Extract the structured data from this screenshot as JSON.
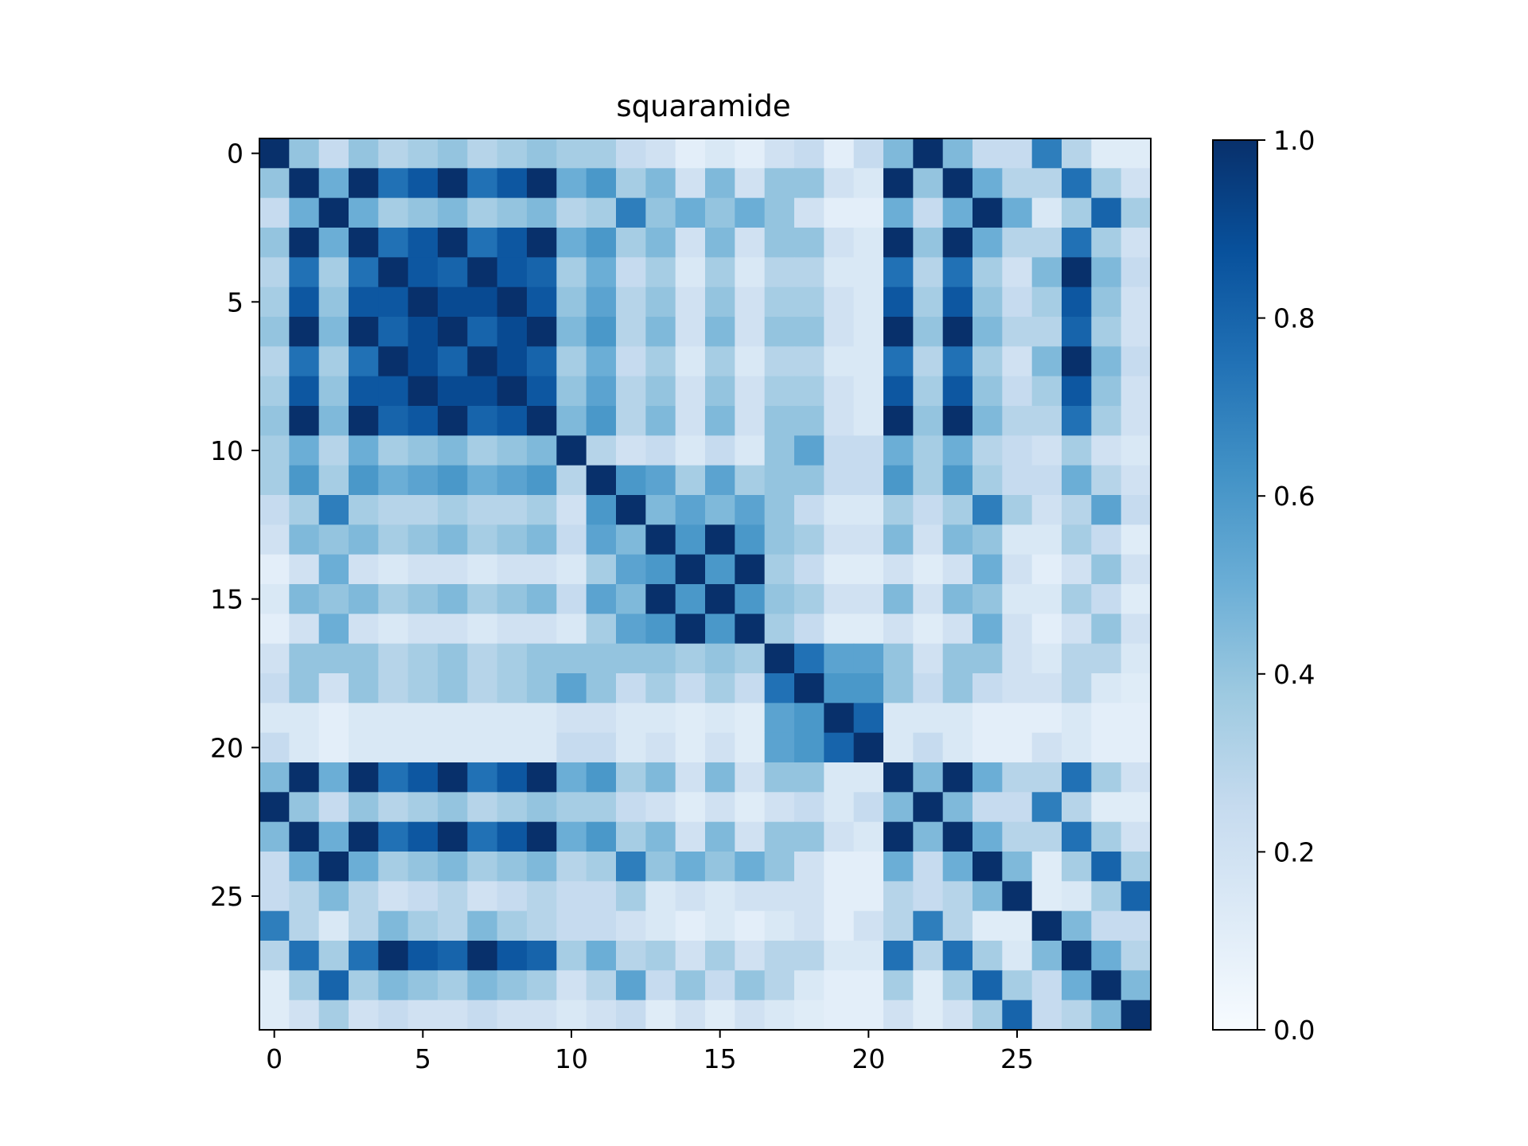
{
  "chart_data": {
    "type": "heatmap",
    "title": "squaramide",
    "xlabel": "",
    "ylabel": "",
    "x_ticks": [
      "0",
      "5",
      "10",
      "15",
      "20",
      "25"
    ],
    "y_ticks": [
      "0",
      "5",
      "10",
      "15",
      "20",
      "25"
    ],
    "colorbar": {
      "ticks": [
        "0.0",
        "0.2",
        "0.4",
        "0.6",
        "0.8",
        "1.0"
      ],
      "range": [
        0,
        1
      ],
      "colormap": "Blues"
    },
    "colormap_stops": [
      "#f7fbff",
      "#deebf7",
      "#c6dbef",
      "#9ecae1",
      "#6baed6",
      "#4292c6",
      "#2171b5",
      "#08519c",
      "#08306b"
    ],
    "values": [
      [
        1.0,
        0.4,
        0.25,
        0.4,
        0.3,
        0.35,
        0.4,
        0.3,
        0.35,
        0.4,
        0.35,
        0.35,
        0.25,
        0.2,
        0.1,
        0.15,
        0.1,
        0.2,
        0.25,
        0.1,
        0.25,
        0.45,
        1.0,
        0.45,
        0.25,
        0.25,
        0.7,
        0.3,
        0.12,
        0.12
      ],
      [
        0.4,
        1.0,
        0.5,
        1.0,
        0.75,
        0.85,
        1.0,
        0.75,
        0.85,
        1.0,
        0.5,
        0.6,
        0.35,
        0.45,
        0.2,
        0.45,
        0.2,
        0.4,
        0.4,
        0.2,
        0.15,
        1.0,
        0.4,
        1.0,
        0.5,
        0.3,
        0.3,
        0.75,
        0.35,
        0.2
      ],
      [
        0.25,
        0.5,
        1.0,
        0.5,
        0.35,
        0.4,
        0.45,
        0.35,
        0.4,
        0.45,
        0.3,
        0.35,
        0.7,
        0.4,
        0.5,
        0.4,
        0.5,
        0.4,
        0.2,
        0.1,
        0.1,
        0.5,
        0.25,
        0.5,
        1.0,
        0.5,
        0.15,
        0.35,
        0.8,
        0.35
      ],
      [
        0.4,
        1.0,
        0.5,
        1.0,
        0.75,
        0.85,
        1.0,
        0.75,
        0.85,
        1.0,
        0.5,
        0.6,
        0.35,
        0.45,
        0.2,
        0.45,
        0.2,
        0.4,
        0.4,
        0.2,
        0.15,
        1.0,
        0.4,
        1.0,
        0.5,
        0.3,
        0.3,
        0.75,
        0.35,
        0.2
      ],
      [
        0.3,
        0.75,
        0.35,
        0.75,
        1.0,
        0.85,
        0.8,
        1.0,
        0.85,
        0.8,
        0.35,
        0.5,
        0.25,
        0.35,
        0.15,
        0.35,
        0.15,
        0.3,
        0.3,
        0.15,
        0.15,
        0.75,
        0.3,
        0.75,
        0.35,
        0.2,
        0.45,
        1.0,
        0.45,
        0.25
      ],
      [
        0.35,
        0.85,
        0.4,
        0.85,
        0.85,
        1.0,
        0.9,
        0.9,
        1.0,
        0.85,
        0.4,
        0.55,
        0.3,
        0.4,
        0.2,
        0.4,
        0.2,
        0.35,
        0.35,
        0.2,
        0.15,
        0.85,
        0.35,
        0.85,
        0.4,
        0.25,
        0.35,
        0.85,
        0.4,
        0.2
      ],
      [
        0.4,
        1.0,
        0.45,
        1.0,
        0.8,
        0.9,
        1.0,
        0.8,
        0.9,
        1.0,
        0.45,
        0.6,
        0.3,
        0.45,
        0.2,
        0.45,
        0.2,
        0.4,
        0.4,
        0.2,
        0.15,
        1.0,
        0.4,
        1.0,
        0.45,
        0.3,
        0.3,
        0.8,
        0.35,
        0.2
      ],
      [
        0.3,
        0.75,
        0.35,
        0.75,
        1.0,
        0.9,
        0.8,
        1.0,
        0.9,
        0.8,
        0.35,
        0.5,
        0.25,
        0.35,
        0.15,
        0.35,
        0.15,
        0.3,
        0.3,
        0.15,
        0.15,
        0.75,
        0.3,
        0.75,
        0.35,
        0.2,
        0.45,
        1.0,
        0.45,
        0.25
      ],
      [
        0.35,
        0.85,
        0.4,
        0.85,
        0.85,
        1.0,
        0.9,
        0.9,
        1.0,
        0.85,
        0.4,
        0.55,
        0.3,
        0.4,
        0.2,
        0.4,
        0.2,
        0.35,
        0.35,
        0.2,
        0.15,
        0.85,
        0.35,
        0.85,
        0.4,
        0.25,
        0.35,
        0.85,
        0.4,
        0.2
      ],
      [
        0.4,
        1.0,
        0.45,
        1.0,
        0.8,
        0.85,
        1.0,
        0.8,
        0.85,
        1.0,
        0.45,
        0.6,
        0.3,
        0.45,
        0.2,
        0.45,
        0.2,
        0.4,
        0.4,
        0.2,
        0.15,
        1.0,
        0.4,
        1.0,
        0.45,
        0.3,
        0.3,
        0.75,
        0.35,
        0.2
      ],
      [
        0.35,
        0.5,
        0.3,
        0.5,
        0.35,
        0.4,
        0.45,
        0.35,
        0.4,
        0.45,
        1.0,
        0.3,
        0.2,
        0.25,
        0.15,
        0.25,
        0.15,
        0.4,
        0.55,
        0.25,
        0.25,
        0.5,
        0.35,
        0.5,
        0.3,
        0.25,
        0.2,
        0.35,
        0.2,
        0.15
      ],
      [
        0.35,
        0.6,
        0.35,
        0.6,
        0.5,
        0.55,
        0.6,
        0.5,
        0.55,
        0.6,
        0.3,
        1.0,
        0.6,
        0.55,
        0.35,
        0.55,
        0.35,
        0.4,
        0.4,
        0.25,
        0.25,
        0.6,
        0.35,
        0.6,
        0.35,
        0.25,
        0.25,
        0.5,
        0.3,
        0.2
      ],
      [
        0.25,
        0.35,
        0.7,
        0.35,
        0.3,
        0.3,
        0.35,
        0.3,
        0.3,
        0.35,
        0.2,
        0.6,
        1.0,
        0.45,
        0.55,
        0.45,
        0.55,
        0.4,
        0.25,
        0.15,
        0.15,
        0.35,
        0.25,
        0.35,
        0.7,
        0.35,
        0.2,
        0.3,
        0.55,
        0.25
      ],
      [
        0.2,
        0.45,
        0.4,
        0.45,
        0.35,
        0.4,
        0.45,
        0.35,
        0.4,
        0.45,
        0.25,
        0.55,
        0.45,
        1.0,
        0.6,
        1.0,
        0.6,
        0.4,
        0.35,
        0.2,
        0.2,
        0.45,
        0.2,
        0.45,
        0.4,
        0.15,
        0.15,
        0.35,
        0.25,
        0.12
      ],
      [
        0.1,
        0.2,
        0.5,
        0.2,
        0.15,
        0.2,
        0.2,
        0.15,
        0.2,
        0.2,
        0.15,
        0.35,
        0.55,
        0.6,
        1.0,
        0.6,
        1.0,
        0.35,
        0.25,
        0.12,
        0.12,
        0.2,
        0.12,
        0.2,
        0.5,
        0.2,
        0.1,
        0.2,
        0.4,
        0.2
      ],
      [
        0.15,
        0.45,
        0.4,
        0.45,
        0.35,
        0.4,
        0.45,
        0.35,
        0.4,
        0.45,
        0.25,
        0.55,
        0.45,
        1.0,
        0.6,
        1.0,
        0.6,
        0.4,
        0.35,
        0.2,
        0.2,
        0.45,
        0.2,
        0.45,
        0.4,
        0.15,
        0.15,
        0.35,
        0.25,
        0.12
      ],
      [
        0.1,
        0.2,
        0.5,
        0.2,
        0.15,
        0.2,
        0.2,
        0.15,
        0.2,
        0.2,
        0.15,
        0.35,
        0.55,
        0.6,
        1.0,
        0.6,
        1.0,
        0.35,
        0.25,
        0.12,
        0.12,
        0.2,
        0.12,
        0.2,
        0.5,
        0.2,
        0.1,
        0.2,
        0.4,
        0.2
      ],
      [
        0.2,
        0.4,
        0.4,
        0.4,
        0.3,
        0.35,
        0.4,
        0.3,
        0.35,
        0.4,
        0.4,
        0.4,
        0.4,
        0.4,
        0.35,
        0.4,
        0.35,
        1.0,
        0.75,
        0.55,
        0.55,
        0.4,
        0.2,
        0.4,
        0.4,
        0.2,
        0.15,
        0.3,
        0.3,
        0.15
      ],
      [
        0.25,
        0.4,
        0.2,
        0.4,
        0.3,
        0.35,
        0.4,
        0.3,
        0.35,
        0.4,
        0.55,
        0.4,
        0.25,
        0.35,
        0.25,
        0.35,
        0.25,
        0.75,
        1.0,
        0.6,
        0.6,
        0.4,
        0.25,
        0.4,
        0.25,
        0.2,
        0.2,
        0.3,
        0.15,
        0.12
      ],
      [
        0.15,
        0.15,
        0.1,
        0.15,
        0.15,
        0.15,
        0.15,
        0.15,
        0.15,
        0.15,
        0.2,
        0.2,
        0.15,
        0.15,
        0.12,
        0.15,
        0.12,
        0.55,
        0.6,
        1.0,
        0.8,
        0.15,
        0.15,
        0.15,
        0.1,
        0.1,
        0.1,
        0.15,
        0.1,
        0.1
      ],
      [
        0.25,
        0.15,
        0.1,
        0.15,
        0.15,
        0.15,
        0.15,
        0.15,
        0.15,
        0.15,
        0.25,
        0.25,
        0.15,
        0.2,
        0.12,
        0.2,
        0.12,
        0.55,
        0.6,
        0.8,
        1.0,
        0.15,
        0.25,
        0.15,
        0.1,
        0.1,
        0.2,
        0.15,
        0.1,
        0.1
      ],
      [
        0.45,
        1.0,
        0.5,
        1.0,
        0.75,
        0.85,
        1.0,
        0.75,
        0.85,
        1.0,
        0.5,
        0.6,
        0.35,
        0.45,
        0.2,
        0.45,
        0.2,
        0.4,
        0.4,
        0.15,
        0.15,
        1.0,
        0.45,
        1.0,
        0.5,
        0.3,
        0.3,
        0.75,
        0.35,
        0.2
      ],
      [
        1.0,
        0.4,
        0.25,
        0.4,
        0.3,
        0.35,
        0.4,
        0.3,
        0.35,
        0.4,
        0.35,
        0.35,
        0.25,
        0.2,
        0.12,
        0.2,
        0.12,
        0.2,
        0.25,
        0.15,
        0.25,
        0.45,
        1.0,
        0.45,
        0.25,
        0.25,
        0.7,
        0.3,
        0.12,
        0.12
      ],
      [
        0.45,
        1.0,
        0.5,
        1.0,
        0.75,
        0.85,
        1.0,
        0.75,
        0.85,
        1.0,
        0.5,
        0.6,
        0.35,
        0.45,
        0.2,
        0.45,
        0.2,
        0.4,
        0.4,
        0.2,
        0.15,
        1.0,
        0.45,
        1.0,
        0.5,
        0.3,
        0.3,
        0.75,
        0.35,
        0.2
      ],
      [
        0.25,
        0.5,
        1.0,
        0.5,
        0.35,
        0.4,
        0.45,
        0.35,
        0.4,
        0.45,
        0.3,
        0.35,
        0.7,
        0.4,
        0.5,
        0.4,
        0.5,
        0.4,
        0.2,
        0.1,
        0.1,
        0.5,
        0.25,
        0.5,
        1.0,
        0.45,
        0.12,
        0.35,
        0.8,
        0.35
      ],
      [
        0.25,
        0.3,
        0.45,
        0.3,
        0.2,
        0.25,
        0.3,
        0.2,
        0.25,
        0.3,
        0.25,
        0.25,
        0.35,
        0.15,
        0.2,
        0.15,
        0.2,
        0.2,
        0.2,
        0.1,
        0.1,
        0.3,
        0.25,
        0.3,
        0.45,
        1.0,
        0.12,
        0.15,
        0.35,
        0.8
      ],
      [
        0.7,
        0.3,
        0.15,
        0.3,
        0.45,
        0.35,
        0.3,
        0.45,
        0.35,
        0.3,
        0.25,
        0.25,
        0.2,
        0.15,
        0.1,
        0.15,
        0.1,
        0.15,
        0.2,
        0.1,
        0.2,
        0.3,
        0.7,
        0.3,
        0.12,
        0.12,
        1.0,
        0.45,
        0.25,
        0.25
      ],
      [
        0.3,
        0.75,
        0.35,
        0.75,
        1.0,
        0.85,
        0.8,
        1.0,
        0.85,
        0.8,
        0.35,
        0.5,
        0.3,
        0.35,
        0.2,
        0.35,
        0.2,
        0.3,
        0.3,
        0.15,
        0.15,
        0.75,
        0.3,
        0.75,
        0.35,
        0.15,
        0.45,
        1.0,
        0.5,
        0.3
      ],
      [
        0.12,
        0.35,
        0.8,
        0.35,
        0.45,
        0.4,
        0.35,
        0.45,
        0.4,
        0.35,
        0.2,
        0.3,
        0.55,
        0.25,
        0.4,
        0.25,
        0.4,
        0.3,
        0.15,
        0.1,
        0.1,
        0.35,
        0.12,
        0.35,
        0.8,
        0.35,
        0.25,
        0.5,
        1.0,
        0.45
      ],
      [
        0.12,
        0.2,
        0.35,
        0.2,
        0.25,
        0.2,
        0.2,
        0.25,
        0.2,
        0.2,
        0.15,
        0.2,
        0.25,
        0.12,
        0.2,
        0.12,
        0.2,
        0.15,
        0.12,
        0.1,
        0.1,
        0.2,
        0.12,
        0.2,
        0.35,
        0.8,
        0.25,
        0.3,
        0.45,
        1.0
      ]
    ]
  }
}
